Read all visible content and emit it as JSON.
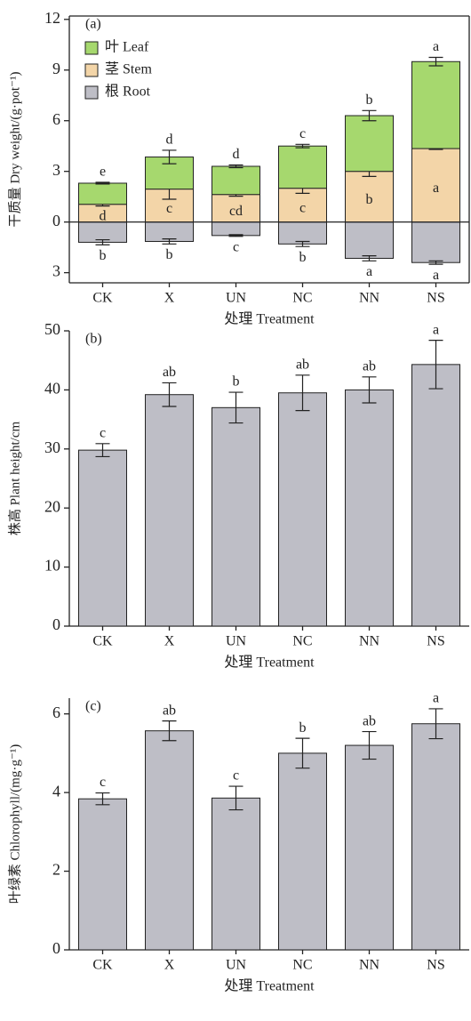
{
  "chart_data": [
    {
      "type": "stacked_bar",
      "panel_label": "(a)",
      "y_label": "干质量 Dry weight/(g·pot⁻¹)",
      "x_label": "处理 Treatment",
      "categories": [
        "CK",
        "X",
        "UN",
        "NC",
        "NN",
        "NS"
      ],
      "legend": "top-left",
      "ylim": [
        -3.6,
        12.2
      ],
      "yticks": [
        {
          "value": -3,
          "label": "3"
        },
        0,
        3,
        6,
        9,
        12
      ],
      "series": [
        {
          "name": "叶 Leaf",
          "color": "#a6d86e",
          "values": [
            1.25,
            1.9,
            1.67,
            2.5,
            3.3,
            5.15
          ],
          "errors": [
            0.05,
            0.4,
            0.08,
            0.1,
            0.3,
            0.25
          ],
          "letters": [
            "e",
            "d",
            "d",
            "c",
            "b",
            "a"
          ]
        },
        {
          "name": "茎 Stem",
          "color": "#f3d5a8",
          "values": [
            1.05,
            1.95,
            1.63,
            2.0,
            3.0,
            4.35
          ],
          "errors": [
            0.1,
            0.6,
            0.1,
            0.3,
            0.3,
            0.05
          ],
          "letters": [
            "d",
            "c",
            "cd",
            "c",
            "b",
            "a"
          ]
        },
        {
          "name": "根 Root",
          "color": "#bebec6",
          "values": [
            -1.2,
            -1.15,
            -0.8,
            -1.3,
            -2.15,
            -2.4
          ],
          "errors": [
            0.15,
            0.15,
            0.05,
            0.15,
            0.15,
            0.1
          ],
          "letters": [
            "b",
            "b",
            "c",
            "b",
            "a",
            "a"
          ]
        }
      ]
    },
    {
      "type": "bar",
      "panel_label": "(b)",
      "y_label": "株高 Plant height/cm",
      "x_label": "处理 Treatment",
      "categories": [
        "CK",
        "X",
        "UN",
        "NC",
        "NN",
        "NS"
      ],
      "color": "#bebec6",
      "ylim": [
        0,
        50
      ],
      "yticks": [
        0,
        10,
        20,
        30,
        40,
        50
      ],
      "values": [
        29.8,
        39.2,
        37,
        39.5,
        40,
        44.3
      ],
      "errors": [
        1.1,
        2,
        2.6,
        3,
        2.2,
        4.1
      ],
      "letters": [
        "c",
        "ab",
        "b",
        "ab",
        "ab",
        "a"
      ]
    },
    {
      "type": "bar",
      "panel_label": "(c)",
      "y_label": "叶绿素 Chlorophyll/(mg·g⁻¹)",
      "x_label": "处理 Treatment",
      "categories": [
        "CK",
        "X",
        "UN",
        "NC",
        "NN",
        "NS"
      ],
      "color": "#bebec6",
      "ylim": [
        0,
        6.4
      ],
      "yticks": [
        0,
        2,
        4,
        6
      ],
      "values": [
        3.84,
        5.57,
        3.86,
        5.0,
        5.2,
        5.75
      ],
      "errors": [
        0.15,
        0.25,
        0.3,
        0.38,
        0.35,
        0.38
      ],
      "letters": [
        "c",
        "ab",
        "c",
        "b",
        "ab",
        "a"
      ]
    }
  ]
}
